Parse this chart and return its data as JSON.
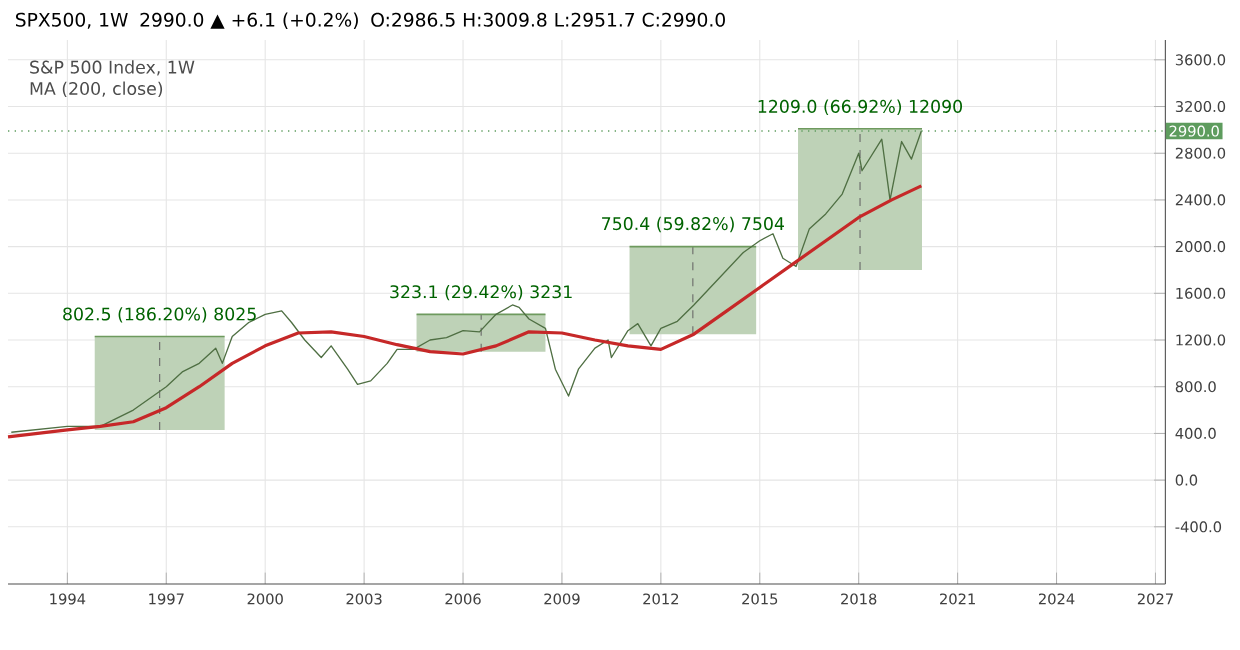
{
  "chart_data": {
    "type": "line",
    "title": "SPX500, 1W",
    "subtitle": "MA (200, close)",
    "annotations": [
      "2990.0 ▲ +6.1 (+0.2%)",
      "O:2986.5 H:3009.8 L:2951.7 C:2990.0",
      "S&P 500 Index, 1W",
      {
        "text": "802.5 (186.20%) 8025",
        "x": 1996.8,
        "y": 1230.5
      },
      {
        "text": "323.1 (29.42%) 3231",
        "x": 2006.55,
        "y": 1421
      },
      {
        "text": "750.4 (59.82%) 7504",
        "x": 2012.97,
        "y": 2005
      },
      {
        "text": "1209.0 (66.92%) 12090",
        "x": 2018.04,
        "y": 3009
      }
    ],
    "series": [
      {
        "type": "line",
        "color": "#6e9a5e",
        "x": [
          1994.83,
          1996.8,
          1998.77
        ],
        "values": [
          1230,
          1230,
          1230
        ],
        "lower": [
          430,
          430,
          430
        ],
        "upper": [
          1230,
          1230,
          1230
        ]
      },
      {
        "type": "line",
        "color": "#6e9a5e",
        "x": [
          2004.59,
          2006.55,
          2008.5
        ],
        "values": [
          1420,
          1420,
          1420
        ],
        "lower": [
          1100,
          1100,
          1100
        ],
        "upper": [
          1420,
          1420,
          1420
        ]
      },
      {
        "type": "line",
        "color": "#6e9a5e",
        "x": [
          2011.05,
          2012.97,
          2014.89
        ],
        "values": [
          2000,
          2000,
          2000
        ],
        "lower": [
          1250,
          1250,
          1250
        ],
        "upper": [
          2000,
          2000,
          2000
        ]
      },
      {
        "type": "line",
        "color": "#6e9a5e",
        "x": [
          2016.16,
          2018.04,
          2019.92
        ],
        "values": [
          3010,
          3010,
          3010
        ],
        "lower": [
          1800,
          1800,
          1800
        ],
        "upper": [
          3010,
          3010,
          3010
        ]
      },
      {
        "color": "#4f6f43",
        "x": [
          1992.3,
          1994.0,
          1995.0,
          1996.0,
          1997.0,
          1997.5,
          1998.0,
          1998.5,
          1998.7,
          1999.0,
          1999.5,
          2000.0,
          2000.5,
          2000.8,
          2001.2,
          2001.7,
          2002.0,
          2002.5,
          2002.8,
          2003.2,
          2003.7,
          2004.0,
          2004.5,
          2005.0,
          2005.5,
          2006.0,
          2006.5,
          2007.0,
          2007.5,
          2007.7,
          2008.0,
          2008.5,
          2008.8,
          2009.2,
          2009.5,
          2010.0,
          2010.4,
          2010.5,
          2011.0,
          2011.3,
          2011.7,
          2012.0,
          2012.5,
          2013.0,
          2013.5,
          2014.0,
          2014.5,
          2015.0,
          2015.4,
          2015.7,
          2016.1,
          2016.5,
          2017.0,
          2017.5,
          2018.0,
          2018.1,
          2018.7,
          2018.95,
          2019.3,
          2019.6,
          2019.9
        ],
        "values": [
          410,
          460,
          460,
          600,
          800,
          930,
          1000,
          1130,
          1000,
          1230,
          1350,
          1420,
          1450,
          1350,
          1200,
          1050,
          1150,
          950,
          820,
          850,
          1000,
          1120,
          1120,
          1200,
          1220,
          1280,
          1270,
          1420,
          1500,
          1480,
          1380,
          1300,
          950,
          720,
          950,
          1130,
          1200,
          1050,
          1280,
          1340,
          1150,
          1300,
          1360,
          1500,
          1650,
          1800,
          1950,
          2050,
          2110,
          1900,
          1830,
          2150,
          2280,
          2450,
          2800,
          2650,
          2920,
          2400,
          2900,
          2750,
          2990
        ]
      },
      {
        "color": "#c62828",
        "x": [
          1992.2,
          1994,
          1995,
          1996,
          1997,
          1998,
          1999,
          2000,
          2001,
          2002,
          2003,
          2004,
          2005,
          2006,
          2007,
          2008,
          2009,
          2010,
          2011,
          2012,
          2013,
          2014,
          2015,
          2016,
          2017,
          2018,
          2019,
          2019.9
        ],
        "values": [
          370,
          430,
          460,
          500,
          620,
          800,
          1000,
          1150,
          1260,
          1270,
          1230,
          1160,
          1100,
          1080,
          1150,
          1270,
          1260,
          1200,
          1150,
          1120,
          1250,
          1450,
          1650,
          1850,
          2050,
          2250,
          2400,
          2520
        ]
      }
    ],
    "xlim": [
      1992.2,
      2027.3
    ],
    "ylim": [
      -890,
      3770
    ],
    "xticks": [
      1994,
      1997,
      2000,
      2003,
      2006,
      2009,
      2012,
      2015,
      2018,
      2021,
      2024,
      2027
    ],
    "yticks": [
      {
        "value": -400,
        "label": "-400.0"
      },
      {
        "value": 0,
        "label": "0.0"
      },
      {
        "value": 400,
        "label": "400.0"
      },
      {
        "value": 800,
        "label": "800.0"
      },
      {
        "value": 1200,
        "label": "1200.0"
      },
      {
        "value": 1600,
        "label": "1600.0"
      },
      {
        "value": 2000,
        "label": "2000.0"
      },
      {
        "value": 2400,
        "label": "2400.0"
      },
      {
        "value": 2800,
        "label": "2800.0"
      },
      {
        "value": 3200,
        "label": "3200.0"
      },
      {
        "value": 3600,
        "label": "3600.0"
      }
    ],
    "ref_lines": [
      {
        "axis": "y",
        "value": 2990,
        "label": "2990.0",
        "color": "#5e9c5e",
        "line_style": "dotted"
      }
    ],
    "grid": true,
    "marker": "none",
    "line_style": "solid"
  }
}
